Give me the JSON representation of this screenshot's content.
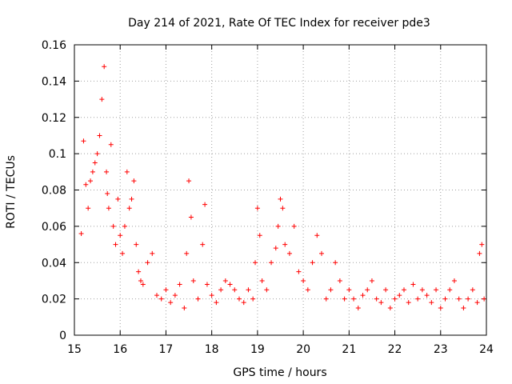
{
  "chart_data": {
    "type": "scatter",
    "title": "Day 214 of 2021, Rate Of TEC Index for receiver pde3",
    "xlabel": "GPS time / hours",
    "ylabel": "ROTI / TECUs",
    "xlim": [
      15,
      24
    ],
    "ylim": [
      0,
      0.16
    ],
    "x_ticks": [
      "15",
      "16",
      "17",
      "18",
      "19",
      "20",
      "21",
      "22",
      "23",
      "24"
    ],
    "y_ticks": [
      "0",
      "0.02",
      "0.04",
      "0.06",
      "0.08",
      "0.1",
      "0.12",
      "0.14",
      "0.16"
    ],
    "grid": true,
    "marker": "plus",
    "series": [
      {
        "name": "ROTI",
        "color": "#ff0000",
        "x": [
          15.15,
          15.2,
          15.25,
          15.3,
          15.35,
          15.4,
          15.45,
          15.5,
          15.55,
          15.6,
          15.65,
          15.7,
          15.72,
          15.75,
          15.8,
          15.85,
          15.9,
          15.95,
          16.0,
          16.05,
          16.1,
          16.15,
          16.2,
          16.25,
          16.3,
          16.35,
          16.4,
          16.45,
          16.5,
          16.6,
          16.7,
          16.8,
          16.9,
          17.0,
          17.1,
          17.2,
          17.3,
          17.4,
          17.45,
          17.5,
          17.55,
          17.6,
          17.7,
          17.8,
          17.85,
          17.9,
          18.0,
          18.1,
          18.2,
          18.3,
          18.4,
          18.5,
          18.6,
          18.7,
          18.8,
          18.9,
          18.95,
          19.0,
          19.05,
          19.1,
          19.2,
          19.3,
          19.4,
          19.45,
          19.5,
          19.55,
          19.6,
          19.7,
          19.8,
          19.9,
          20.0,
          20.1,
          20.2,
          20.3,
          20.4,
          20.5,
          20.6,
          20.7,
          20.8,
          20.9,
          21.0,
          21.1,
          21.2,
          21.3,
          21.4,
          21.5,
          21.6,
          21.7,
          21.8,
          21.9,
          22.0,
          22.1,
          22.2,
          22.3,
          22.4,
          22.5,
          22.6,
          22.7,
          22.8,
          22.9,
          23.0,
          23.1,
          23.2,
          23.3,
          23.4,
          23.5,
          23.6,
          23.7,
          23.8,
          23.85,
          23.9,
          23.95
        ],
        "y": [
          0.056,
          0.107,
          0.083,
          0.07,
          0.085,
          0.09,
          0.095,
          0.1,
          0.11,
          0.13,
          0.148,
          0.09,
          0.078,
          0.07,
          0.105,
          0.06,
          0.05,
          0.075,
          0.055,
          0.045,
          0.06,
          0.09,
          0.07,
          0.075,
          0.085,
          0.05,
          0.035,
          0.03,
          0.028,
          0.04,
          0.045,
          0.022,
          0.02,
          0.025,
          0.018,
          0.022,
          0.028,
          0.015,
          0.045,
          0.085,
          0.065,
          0.03,
          0.02,
          0.05,
          0.072,
          0.028,
          0.022,
          0.018,
          0.025,
          0.03,
          0.028,
          0.025,
          0.02,
          0.018,
          0.025,
          0.02,
          0.04,
          0.07,
          0.055,
          0.03,
          0.025,
          0.04,
          0.048,
          0.06,
          0.075,
          0.07,
          0.05,
          0.045,
          0.06,
          0.035,
          0.03,
          0.025,
          0.04,
          0.055,
          0.045,
          0.02,
          0.025,
          0.04,
          0.03,
          0.02,
          0.025,
          0.02,
          0.015,
          0.022,
          0.025,
          0.03,
          0.02,
          0.018,
          0.025,
          0.015,
          0.02,
          0.022,
          0.025,
          0.018,
          0.028,
          0.02,
          0.025,
          0.022,
          0.018,
          0.025,
          0.015,
          0.02,
          0.025,
          0.03,
          0.02,
          0.015,
          0.02,
          0.025,
          0.018,
          0.045,
          0.05,
          0.02
        ]
      }
    ]
  }
}
